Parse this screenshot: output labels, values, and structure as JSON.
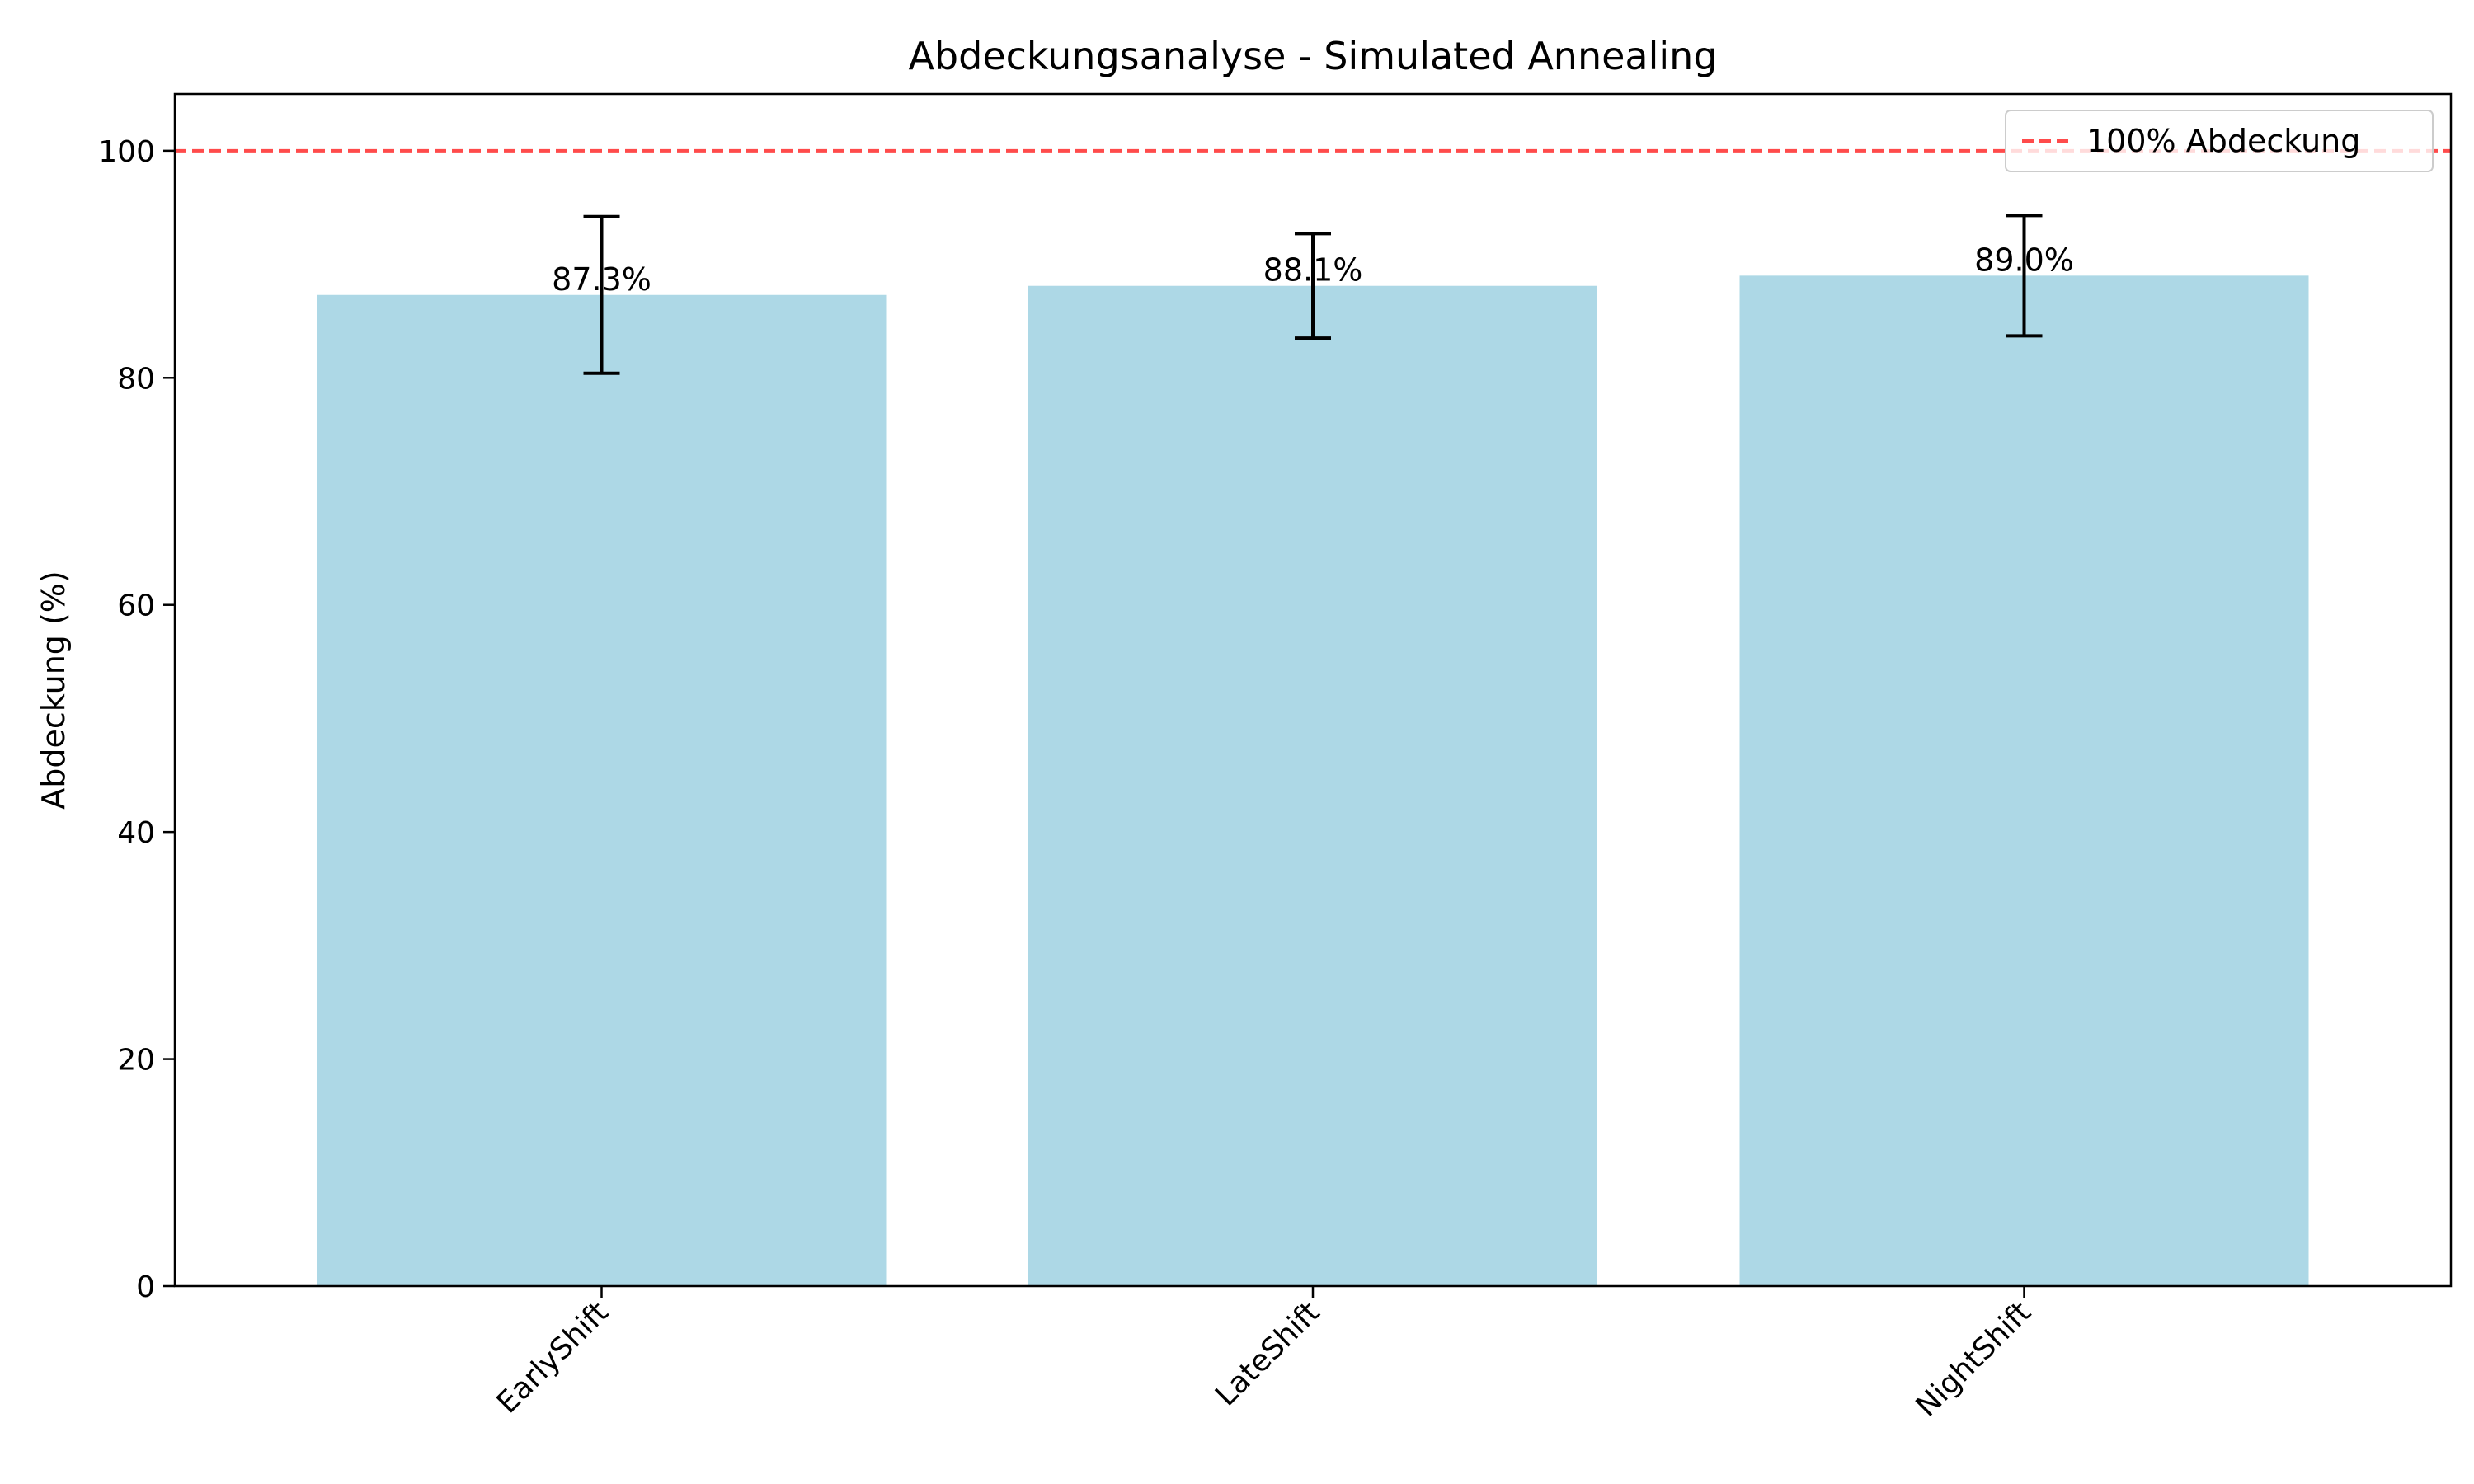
{
  "chart_data": {
    "type": "bar",
    "title": "Abdeckungsanalyse - Simulated Annealing",
    "xlabel": "",
    "ylabel": "Abdeckung (%)",
    "ylim": [
      0,
      105
    ],
    "yticks": [
      0,
      20,
      40,
      60,
      80,
      100
    ],
    "categories": [
      "EarlyShift",
      "LateShift",
      "NightShift"
    ],
    "values": [
      87.3,
      88.1,
      89.0
    ],
    "errors": [
      6.9,
      4.6,
      5.3
    ],
    "data_labels": [
      "87.3%",
      "88.1%",
      "89.0%"
    ],
    "bar_color": "#add8e6",
    "reference_line": {
      "y": 100,
      "label": "100% Abdeckung",
      "color": "#ff0000",
      "style": "dashed"
    },
    "legend_position": "top-right",
    "grid": false
  }
}
